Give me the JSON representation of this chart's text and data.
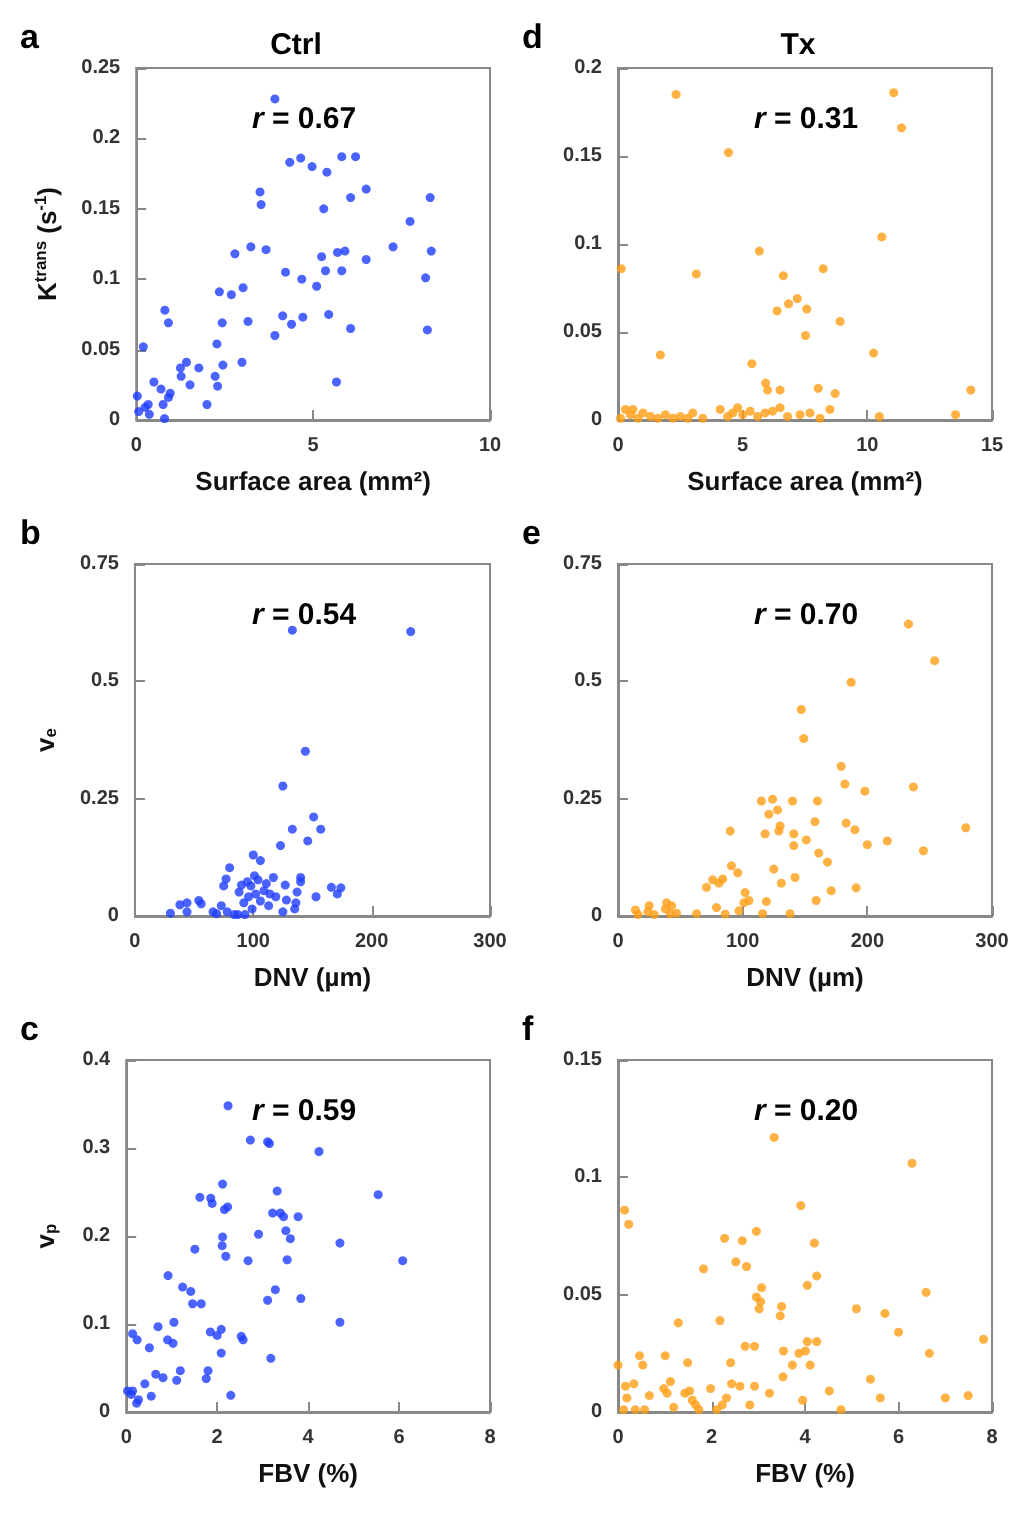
{
  "chart_data": [
    {
      "type": "scatter",
      "title": "Ctrl",
      "annotations": [
        "a",
        "r = 0.67"
      ],
      "xlabel": "Surface area (mm²)",
      "ylabel": "K$^{trans}$ (s$^{-1}$)",
      "color": "#1f3dff",
      "marker": "circle",
      "xlim": [
        0,
        10
      ],
      "xticks": [
        0,
        5,
        10
      ],
      "ylim": [
        0,
        0.25
      ],
      "yticks": [
        0,
        0.05,
        0.1,
        0.15,
        0.2,
        0.25
      ],
      "x": [
        0.03,
        0.07,
        0.2,
        0.25,
        0.34,
        0.37,
        0.5,
        0.7,
        0.76,
        0.8,
        0.81,
        0.91,
        0.91,
        0.96,
        1.25,
        1.27,
        1.42,
        1.52,
        1.77,
        2.0,
        2.23,
        2.28,
        2.3,
        2.35,
        2.43,
        2.45,
        2.69,
        2.79,
        2.99,
        3.02,
        3.16,
        3.24,
        3.5,
        3.53,
        3.67,
        3.92,
        3.92,
        4.14,
        4.22,
        4.34,
        4.39,
        4.65,
        4.68,
        4.71,
        4.97,
        5.1,
        5.24,
        5.3,
        5.35,
        5.39,
        5.44,
        5.66,
        5.69,
        5.81,
        5.81,
        5.9,
        6.06,
        6.06,
        6.2,
        6.5,
        6.5,
        7.26,
        7.74,
        8.18,
        8.23,
        8.31,
        8.34
      ],
      "values": [
        0.017,
        0.006,
        0.052,
        0.009,
        0.011,
        0.004,
        0.027,
        0.022,
        0.011,
        0.001,
        0.078,
        0.069,
        0.016,
        0.019,
        0.037,
        0.031,
        0.041,
        0.025,
        0.037,
        0.011,
        0.031,
        0.054,
        0.024,
        0.091,
        0.069,
        0.039,
        0.089,
        0.118,
        0.041,
        0.094,
        0.07,
        0.123,
        0.162,
        0.153,
        0.121,
        0.228,
        0.06,
        0.074,
        0.105,
        0.183,
        0.068,
        0.186,
        0.1,
        0.073,
        0.18,
        0.095,
        0.116,
        0.15,
        0.106,
        0.176,
        0.075,
        0.027,
        0.119,
        0.187,
        0.106,
        0.12,
        0.065,
        0.158,
        0.187,
        0.164,
        0.114,
        0.123,
        0.141,
        0.101,
        0.064,
        0.158,
        0.12
      ]
    },
    {
      "type": "scatter",
      "title": "Tx",
      "annotations": [
        "d",
        "r = 0.31"
      ],
      "xlabel": "Surface area (mm²)",
      "color": "#ff9d14",
      "marker": "circle",
      "xlim": [
        0,
        15
      ],
      "xticks": [
        0,
        5,
        10,
        15
      ],
      "ylim": [
        0,
        0.2
      ],
      "yticks": [
        0,
        0.05,
        0.1,
        0.15,
        0.2
      ],
      "x": [
        0.13,
        1.7,
        2.33,
        3.14,
        4.43,
        5.37,
        5.67,
        5.92,
        6.0,
        6.38,
        6.5,
        6.63,
        6.84,
        7.19,
        7.57,
        7.52,
        8.23,
        8.03,
        8.71,
        8.91,
        10.25,
        10.48,
        10.58,
        11.06,
        11.37,
        13.54,
        14.15,
        0.1,
        0.3,
        0.5,
        0.8,
        1.0,
        1.3,
        1.6,
        1.9,
        2.2,
        2.5,
        2.8,
        3.0,
        3.4,
        4.1,
        4.4,
        4.6,
        4.8,
        5.0,
        5.3,
        5.6,
        5.9,
        6.2,
        6.5,
        6.8,
        7.3,
        7.7,
        8.1,
        8.5,
        0.6
      ],
      "values": [
        0.086,
        0.037,
        0.185,
        0.083,
        0.152,
        0.032,
        0.096,
        0.021,
        0.017,
        0.062,
        0.017,
        0.082,
        0.066,
        0.069,
        0.063,
        0.048,
        0.086,
        0.018,
        0.015,
        0.056,
        0.038,
        0.002,
        0.104,
        0.186,
        0.166,
        0.003,
        0.017,
        0.001,
        0.006,
        0.003,
        0.001,
        0.004,
        0.002,
        0.001,
        0.003,
        0.001,
        0.002,
        0.001,
        0.004,
        0.001,
        0.006,
        0.002,
        0.004,
        0.007,
        0.003,
        0.005,
        0.002,
        0.004,
        0.005,
        0.007,
        0.002,
        0.003,
        0.004,
        0.001,
        0.006,
        0.006
      ]
    },
    {
      "type": "scatter",
      "annotations": [
        "b",
        "r = 0.54"
      ],
      "xlabel": "DNV (µm)",
      "ylabel": "v$_{e}$",
      "color": "#1f3dff",
      "marker": "circle",
      "xlim": [
        0,
        300
      ],
      "xticks": [
        0,
        100,
        200,
        300
      ],
      "ylim": [
        0,
        0.75
      ],
      "yticks": [
        0,
        0.25,
        0.5,
        0.75
      ],
      "x": [
        30,
        38,
        44,
        44,
        54,
        56,
        66,
        69,
        73,
        75,
        77,
        80,
        78,
        84,
        87,
        88,
        90,
        92,
        93,
        95,
        96,
        98,
        99,
        100,
        101,
        102,
        104,
        106,
        106,
        109,
        111,
        113,
        114,
        117,
        119,
        123,
        125,
        125,
        127,
        128,
        133,
        133,
        135,
        136,
        137,
        140,
        140,
        144,
        146,
        151,
        153,
        157,
        166,
        171,
        174,
        233
      ],
      "values": [
        0.006,
        0.024,
        0.028,
        0.009,
        0.033,
        0.026,
        0.009,
        0.005,
        0.022,
        0.064,
        0.079,
        0.103,
        0.009,
        0.003,
        0.003,
        0.051,
        0.066,
        0.028,
        0.003,
        0.073,
        0.041,
        0.064,
        0.015,
        0.13,
        0.086,
        0.047,
        0.077,
        0.118,
        0.032,
        0.054,
        0.069,
        0.022,
        0.047,
        0.082,
        0.041,
        0.15,
        0.277,
        0.009,
        0.066,
        0.034,
        0.609,
        0.185,
        0.015,
        0.028,
        0.051,
        0.082,
        0.073,
        0.351,
        0.16,
        0.211,
        0.041,
        0.185,
        0.061,
        0.047,
        0.06,
        0.606
      ]
    },
    {
      "type": "scatter",
      "annotations": [
        "e",
        "r = 0.70"
      ],
      "xlabel": "DNV (µm)",
      "color": "#ff9d14",
      "marker": "circle",
      "xlim": [
        0,
        300
      ],
      "xticks": [
        0,
        100,
        200,
        300
      ],
      "ylim": [
        0,
        0.75
      ],
      "yticks": [
        0,
        0.25,
        0.5,
        0.75
      ],
      "x": [
        14,
        16,
        24,
        25,
        29,
        38,
        39,
        42,
        43,
        47,
        63,
        71,
        76,
        79,
        81,
        84,
        86,
        90,
        91,
        96,
        97,
        101,
        102,
        105,
        115,
        116,
        118,
        119,
        121,
        124,
        125,
        128,
        129,
        130,
        131,
        138,
        140,
        141,
        141,
        142,
        147,
        149,
        151,
        158,
        159,
        160,
        161,
        168,
        171,
        179,
        182,
        183,
        187,
        190,
        191,
        198,
        200,
        216,
        233,
        237,
        245,
        254,
        279
      ],
      "values": [
        0.013,
        0.003,
        0.009,
        0.022,
        0.003,
        0.015,
        0.028,
        0.005,
        0.022,
        0.006,
        0.005,
        0.061,
        0.077,
        0.018,
        0.07,
        0.079,
        0.004,
        0.181,
        0.107,
        0.092,
        0.011,
        0.028,
        0.05,
        0.033,
        0.245,
        0.005,
        0.175,
        0.031,
        0.217,
        0.249,
        0.1,
        0.226,
        0.181,
        0.192,
        0.07,
        0.005,
        0.245,
        0.175,
        0.15,
        0.082,
        0.44,
        0.378,
        0.162,
        0.201,
        0.033,
        0.245,
        0.134,
        0.115,
        0.054,
        0.319,
        0.281,
        0.198,
        0.498,
        0.184,
        0.06,
        0.266,
        0.152,
        0.16,
        0.622,
        0.275,
        0.139,
        0.544,
        0.188
      ]
    },
    {
      "type": "scatter",
      "annotations": [
        "c",
        "r = 0.59"
      ],
      "xlabel": "FBV (%)",
      "ylabel": "v$_{p}$",
      "color": "#1f3dff",
      "marker": "circle",
      "xlim": [
        0,
        8
      ],
      "xticks": [
        0,
        2,
        4,
        6,
        8
      ],
      "ylim": [
        0,
        0.4
      ],
      "yticks": [
        0,
        0.1,
        0.2,
        0.3,
        0.4
      ],
      "x": [
        0.03,
        0.11,
        0.14,
        0.14,
        0.24,
        0.23,
        0.27,
        0.41,
        0.51,
        0.55,
        0.65,
        0.7,
        0.81,
        0.91,
        0.92,
        1.03,
        1.05,
        1.11,
        1.19,
        1.24,
        1.42,
        1.46,
        1.51,
        1.62,
        1.65,
        1.76,
        1.8,
        1.85,
        1.86,
        1.89,
        2.0,
        2.09,
        2.09,
        2.11,
        2.12,
        2.12,
        2.16,
        2.19,
        2.23,
        2.24,
        2.3,
        2.53,
        2.57,
        2.68,
        2.73,
        2.91,
        3.11,
        3.15,
        3.11,
        3.18,
        3.22,
        3.28,
        3.32,
        3.39,
        3.46,
        3.51,
        3.54,
        3.61,
        3.78,
        3.84,
        4.24,
        4.7,
        4.7,
        5.54,
        6.08
      ],
      "values": [
        0.024,
        0.02,
        0.024,
        0.089,
        0.082,
        0.01,
        0.014,
        0.032,
        0.073,
        0.018,
        0.043,
        0.097,
        0.039,
        0.082,
        0.155,
        0.078,
        0.102,
        0.036,
        0.047,
        0.142,
        0.137,
        0.123,
        0.185,
        0.244,
        0.123,
        0.038,
        0.047,
        0.091,
        0.243,
        0.237,
        0.087,
        0.094,
        0.067,
        0.189,
        0.199,
        0.259,
        0.23,
        0.177,
        0.233,
        0.348,
        0.019,
        0.086,
        0.082,
        0.172,
        0.309,
        0.202,
        0.307,
        0.305,
        0.127,
        0.061,
        0.226,
        0.139,
        0.251,
        0.226,
        0.222,
        0.206,
        0.173,
        0.197,
        0.222,
        0.129,
        0.296,
        0.192,
        0.102,
        0.247,
        0.172
      ]
    },
    {
      "type": "scatter",
      "annotations": [
        "f",
        "r = 0.20"
      ],
      "xlabel": "FBV (%)",
      "color": "#ff9d14",
      "marker": "circle",
      "xlim": [
        0,
        8
      ],
      "xticks": [
        0,
        2,
        4,
        6,
        8
      ],
      "ylim": [
        0,
        0.15
      ],
      "yticks": [
        0,
        0.05,
        0.1,
        0.15
      ],
      "x": [
        0,
        0.14,
        0.23,
        0.16,
        0.19,
        0.12,
        0.34,
        0.37,
        0.46,
        0.53,
        0.57,
        0.67,
        0.98,
        1.01,
        1.05,
        1.12,
        1.19,
        1.29,
        1.43,
        1.49,
        1.53,
        1.59,
        1.66,
        1.73,
        1.83,
        1.98,
        2.11,
        2.18,
        2.23,
        2.28,
        2.32,
        2.41,
        2.43,
        2.52,
        2.61,
        2.66,
        2.72,
        2.75,
        2.82,
        2.92,
        2.92,
        2.96,
        2.96,
        3.02,
        3.05,
        3.07,
        3.24,
        3.34,
        3.47,
        3.5,
        3.53,
        3.54,
        3.73,
        3.87,
        3.91,
        3.95,
        4.01,
        4.05,
        4.05,
        4.11,
        4.2,
        4.25,
        4.25,
        4.52,
        4.77,
        5.1,
        5.4,
        5.61,
        5.71,
        6.0,
        6.29,
        6.59,
        6.66,
        7.0,
        7.49,
        7.82
      ],
      "values": [
        0.02,
        0.086,
        0.08,
        0.011,
        0.006,
        0.001,
        0.012,
        0.001,
        0.024,
        0.02,
        0.001,
        0.007,
        0.01,
        0.024,
        0.008,
        0.013,
        0.002,
        0.038,
        0.008,
        0.021,
        0.009,
        0.005,
        0.003,
        0.001,
        0.061,
        0.01,
        0.001,
        0.039,
        0.003,
        0.074,
        0.006,
        0.021,
        0.012,
        0.064,
        0.011,
        0.073,
        0.028,
        0.062,
        0.003,
        0.011,
        0.028,
        0.077,
        0.049,
        0.044,
        0.047,
        0.053,
        0.008,
        0.117,
        0.041,
        0.045,
        0.015,
        0.026,
        0.02,
        0.025,
        0.088,
        0.005,
        0.026,
        0.03,
        0.054,
        0.02,
        0.072,
        0.058,
        0.03,
        0.009,
        0.001,
        0.044,
        0.014,
        0.006,
        0.042,
        0.034,
        0.106,
        0.051,
        0.025,
        0.006,
        0.007,
        0.031
      ]
    }
  ]
}
